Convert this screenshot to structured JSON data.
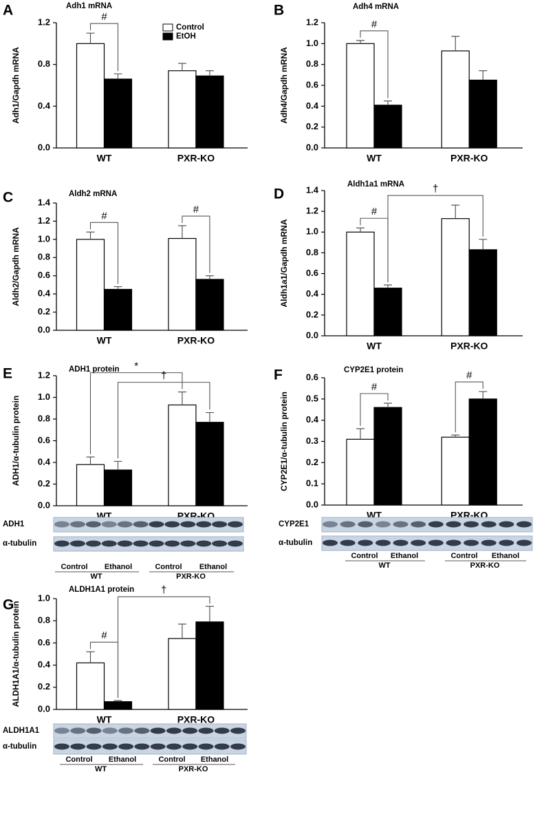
{
  "chart_data": [
    {
      "type": "bar",
      "panel": "A",
      "title": "Adh1 mRNA",
      "ylabel": "Adh1/Gapdh mRNA",
      "categories": [
        "WT",
        "PXR-KO"
      ],
      "series": [
        {
          "name": "Control",
          "color": "#ffffff",
          "values": [
            1.0,
            0.74
          ],
          "errors": [
            0.1,
            0.07
          ]
        },
        {
          "name": "EtOH",
          "color": "#000000",
          "values": [
            0.66,
            0.69
          ],
          "errors": [
            0.05,
            0.05
          ]
        }
      ],
      "ylim": [
        0,
        1.2
      ],
      "yticks": [
        {
          "value": 0,
          "label": "0.0"
        },
        0.4,
        0.8,
        1.2
      ],
      "legend": "top-right",
      "annotations": [
        "#"
      ]
    },
    {
      "type": "bar",
      "panel": "B",
      "title": "Adh4 mRNA",
      "ylabel": "Adh4/Gapdh mRNA",
      "categories": [
        "WT",
        "PXR-KO"
      ],
      "series": [
        {
          "name": "Control",
          "color": "#ffffff",
          "values": [
            1.0,
            0.93
          ],
          "errors": [
            0.03,
            0.14
          ]
        },
        {
          "name": "EtOH",
          "color": "#000000",
          "values": [
            0.41,
            0.65
          ],
          "errors": [
            0.04,
            0.09
          ]
        }
      ],
      "ylim": [
        0,
        1.2
      ],
      "yticks": [
        {
          "value": 0,
          "label": "0.0"
        },
        0.2,
        0.4,
        0.6,
        0.8,
        {
          "value": 1,
          "label": "1.0"
        },
        1.2
      ],
      "annotations": [
        "#"
      ]
    },
    {
      "type": "bar",
      "panel": "C",
      "title": "Aldh2 mRNA",
      "ylabel": "Aldh2/Gapdh mRNA",
      "categories": [
        "WT",
        "PXR-KO"
      ],
      "series": [
        {
          "name": "Control",
          "color": "#ffffff",
          "values": [
            1.0,
            1.01
          ],
          "errors": [
            0.08,
            0.14
          ]
        },
        {
          "name": "EtOH",
          "color": "#000000",
          "values": [
            0.45,
            0.56
          ],
          "errors": [
            0.03,
            0.04
          ]
        }
      ],
      "ylim": [
        0,
        1.4
      ],
      "yticks": [
        {
          "value": 0,
          "label": "0.0"
        },
        0.2,
        0.4,
        0.6,
        0.8,
        {
          "value": 1,
          "label": "1.0"
        },
        1.2,
        1.4
      ],
      "annotations": [
        "#",
        "#"
      ]
    },
    {
      "type": "bar",
      "panel": "D",
      "title": "Aldh1a1 mRNA",
      "ylabel": "Aldh1a1/Gapdh mRNA",
      "categories": [
        "WT",
        "PXR-KO"
      ],
      "series": [
        {
          "name": "Control",
          "color": "#ffffff",
          "values": [
            1.0,
            1.13
          ],
          "errors": [
            0.04,
            0.13
          ]
        },
        {
          "name": "EtOH",
          "color": "#000000",
          "values": [
            0.46,
            0.83
          ],
          "errors": [
            0.03,
            0.1
          ]
        }
      ],
      "ylim": [
        0,
        1.4
      ],
      "yticks": [
        {
          "value": 0,
          "label": "0.0"
        },
        0.2,
        0.4,
        0.6,
        0.8,
        {
          "value": 1,
          "label": "1.0"
        },
        1.2,
        1.4
      ],
      "annotations": [
        "#",
        "†"
      ]
    },
    {
      "type": "bar",
      "panel": "E",
      "title": "ADH1 protein",
      "ylabel": "ADH1/α-tubulin protein",
      "categories": [
        "WT",
        "PXR-KO"
      ],
      "series": [
        {
          "name": "Control",
          "color": "#ffffff",
          "values": [
            0.38,
            0.93
          ],
          "errors": [
            0.07,
            0.12
          ]
        },
        {
          "name": "EtOH",
          "color": "#000000",
          "values": [
            0.33,
            0.77
          ],
          "errors": [
            0.08,
            0.09
          ]
        }
      ],
      "ylim": [
        0,
        1.2
      ],
      "yticks": [
        {
          "value": 0,
          "label": "0.0"
        },
        0.2,
        0.4,
        0.6,
        0.8,
        {
          "value": 1,
          "label": "1.0"
        },
        1.2
      ],
      "annotations": [
        "*",
        "†"
      ],
      "blot_rows": [
        "ADH1",
        "α-tubulin"
      ],
      "lane_groups": [
        {
          "lanes": [
            "Control",
            "Ethanol"
          ],
          "group": "WT"
        },
        {
          "lanes": [
            "Control",
            "Ethanol"
          ],
          "group": "PXR-KO"
        }
      ]
    },
    {
      "type": "bar",
      "panel": "F",
      "title": "CYP2E1 protein",
      "ylabel": "CYP2E1/α-tubulin protein",
      "categories": [
        "WT",
        "PXR-KO"
      ],
      "series": [
        {
          "name": "Control",
          "color": "#ffffff",
          "values": [
            0.31,
            0.32
          ],
          "errors": [
            0.05,
            0.01
          ]
        },
        {
          "name": "EtOH",
          "color": "#000000",
          "values": [
            0.46,
            0.5
          ],
          "errors": [
            0.02,
            0.035
          ]
        }
      ],
      "ylim": [
        0,
        0.6
      ],
      "yticks": [
        {
          "value": 0,
          "label": "0.0"
        },
        0.1,
        0.2,
        0.3,
        0.4,
        0.5,
        0.6
      ],
      "annotations": [
        "#",
        "#"
      ],
      "blot_rows": [
        "CYP2E1",
        "α-tubulin"
      ],
      "lane_groups": [
        {
          "lanes": [
            "Control",
            "Ethanol"
          ],
          "group": "WT"
        },
        {
          "lanes": [
            "Control",
            "Ethanol"
          ],
          "group": "PXR-KO"
        }
      ]
    },
    {
      "type": "bar",
      "panel": "G",
      "title": "ALDH1A1 protein",
      "ylabel": "ALDH1A1/α-tubulin protein",
      "categories": [
        "WT",
        "PXR-KO"
      ],
      "series": [
        {
          "name": "Control",
          "color": "#ffffff",
          "values": [
            0.42,
            0.64
          ],
          "errors": [
            0.1,
            0.13
          ]
        },
        {
          "name": "EtOH",
          "color": "#000000",
          "values": [
            0.07,
            0.79
          ],
          "errors": [
            0.01,
            0.14
          ]
        }
      ],
      "ylim": [
        0,
        1.0
      ],
      "yticks": [
        {
          "value": 0,
          "label": "0.0"
        },
        0.2,
        0.4,
        0.6,
        0.8,
        {
          "value": 1,
          "label": "1.0"
        }
      ],
      "annotations": [
        "#",
        "†"
      ],
      "blot_rows": [
        "ALDH1A1",
        "α-tubulin"
      ],
      "lane_groups": [
        {
          "lanes": [
            "Control",
            "Ethanol"
          ],
          "group": "WT"
        },
        {
          "lanes": [
            "Control",
            "Ethanol"
          ],
          "group": "PXR-KO"
        }
      ]
    }
  ]
}
